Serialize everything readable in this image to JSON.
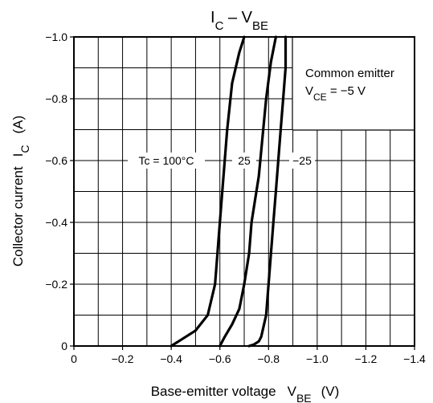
{
  "chart_data": {
    "type": "line",
    "title": {
      "main": "I",
      "sub1": "C",
      "dash": " – V",
      "sub2": "BE"
    },
    "xlabel": {
      "main": "Base-emitter voltage",
      "sym": "V",
      "sub": "BE",
      "unit": "(V)"
    },
    "ylabel": {
      "main": "Collector current",
      "sym": "I",
      "sub": "C",
      "unit": "(A)"
    },
    "xlim": [
      0,
      -1.4
    ],
    "ylim": [
      0,
      -1.0
    ],
    "x_ticks": [
      "0",
      "−0.2",
      "−0.4",
      "−0.6",
      "−0.8",
      "−1.0",
      "−1.2",
      "−1.4"
    ],
    "y_ticks": [
      "0",
      "−0.2",
      "−0.4",
      "−0.6",
      "−0.8",
      "−1.0"
    ],
    "grid": true,
    "annotation": {
      "line1": "Common emitter",
      "line2_main": "V",
      "line2_sub": "CE",
      "line2_rest": " = −5 V"
    },
    "series": [
      {
        "name": "Tc = 100°C",
        "x": [
          -0.4,
          -0.44,
          -0.5,
          -0.55,
          -0.58,
          -0.6,
          -0.61,
          -0.63,
          -0.65,
          -0.68,
          -0.7
        ],
        "y": [
          0,
          -0.02,
          -0.05,
          -0.1,
          -0.2,
          -0.4,
          -0.5,
          -0.7,
          -0.85,
          -0.95,
          -1.0
        ]
      },
      {
        "name": "25",
        "x": [
          -0.6,
          -0.62,
          -0.65,
          -0.68,
          -0.7,
          -0.72,
          -0.73,
          -0.76,
          -0.79,
          -0.81,
          -0.83
        ],
        "y": [
          0,
          -0.03,
          -0.07,
          -0.12,
          -0.2,
          -0.3,
          -0.4,
          -0.55,
          -0.8,
          -0.92,
          -1.0
        ]
      },
      {
        "name": "−25",
        "x": [
          -0.72,
          -0.74,
          -0.76,
          -0.77,
          -0.79,
          -0.8,
          -0.81,
          -0.82,
          -0.83,
          -0.84,
          -0.85,
          -0.86,
          -0.87,
          -0.87
        ],
        "y": [
          0,
          -0.005,
          -0.015,
          -0.03,
          -0.1,
          -0.2,
          -0.3,
          -0.4,
          -0.5,
          -0.6,
          -0.7,
          -0.8,
          -0.9,
          -1.0
        ]
      }
    ]
  }
}
